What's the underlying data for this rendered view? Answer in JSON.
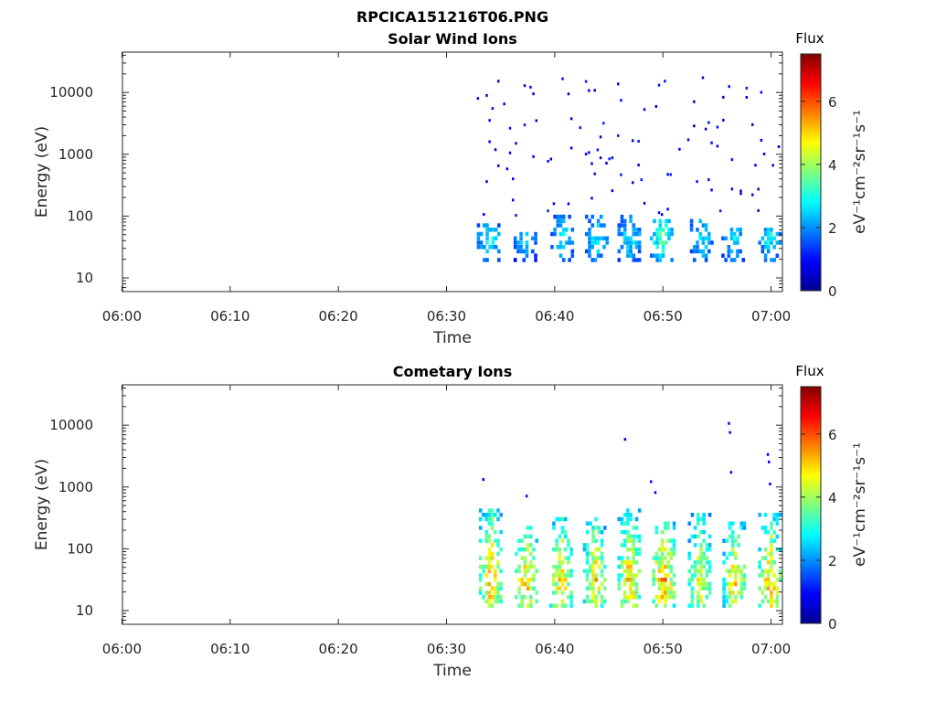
{
  "figure": {
    "title": "RPCICA151216T06.PNG"
  },
  "chart_data": [
    {
      "type": "heatmap",
      "title": "Solar Wind Ions",
      "xlabel": "Time",
      "ylabel": "Energy (eV)",
      "x_ticks": [
        "06:00",
        "06:10",
        "06:20",
        "06:30",
        "06:40",
        "06:50",
        "07:00"
      ],
      "x_range_minutes": [
        0,
        61
      ],
      "y_scale": "log",
      "y_ticks": [
        10,
        100,
        1000,
        10000
      ],
      "y_tick_labels": [
        "10",
        "100",
        "1000",
        "10000"
      ],
      "y_range": [
        6,
        45000
      ],
      "colorbar": {
        "label": "Flux",
        "units": "eV⁻¹cm⁻²sr⁻¹s⁻¹",
        "range": [
          0,
          7.5
        ],
        "ticks": [
          0,
          2,
          4,
          6
        ],
        "tick_labels": [
          "0",
          "2",
          "4",
          "6"
        ],
        "colormap": "jet"
      },
      "data_start_minute": 32.5,
      "bursts": [
        {
          "t": 33.8,
          "lo": 18,
          "hi": 80,
          "peak": 3.6
        },
        {
          "t": 37.2,
          "lo": 18,
          "hi": 55,
          "peak": 3.4
        },
        {
          "t": 40.6,
          "lo": 18,
          "hi": 100,
          "peak": 3.2
        },
        {
          "t": 43.8,
          "lo": 18,
          "hi": 110,
          "peak": 3.4
        },
        {
          "t": 46.8,
          "lo": 18,
          "hi": 110,
          "peak": 3.4
        },
        {
          "t": 49.8,
          "lo": 18,
          "hi": 90,
          "peak": 4.2
        },
        {
          "t": 53.5,
          "lo": 18,
          "hi": 90,
          "peak": 3.4
        },
        {
          "t": 56.4,
          "lo": 18,
          "hi": 70,
          "peak": 3.4
        },
        {
          "t": 59.8,
          "lo": 18,
          "hi": 70,
          "peak": 3.6
        }
      ],
      "scatter_energy_range": [
        100,
        20000
      ],
      "scatter_level": 0.6
    },
    {
      "type": "heatmap",
      "title": "Cometary Ions",
      "xlabel": "Time",
      "ylabel": "Energy (eV)",
      "x_ticks": [
        "06:00",
        "06:10",
        "06:20",
        "06:30",
        "06:40",
        "06:50",
        "07:00"
      ],
      "x_range_minutes": [
        0,
        61
      ],
      "y_scale": "log",
      "y_ticks": [
        10,
        100,
        1000,
        10000
      ],
      "y_tick_labels": [
        "10",
        "100",
        "1000",
        "10000"
      ],
      "y_range": [
        6,
        45000
      ],
      "colorbar": {
        "label": "Flux",
        "units": "eV⁻¹cm⁻²sr⁻¹s⁻¹",
        "range": [
          0,
          7.5
        ],
        "ticks": [
          0,
          2,
          4,
          6
        ],
        "tick_labels": [
          "0",
          "2",
          "4",
          "6"
        ],
        "colormap": "jet"
      },
      "data_start_minute": 32.5,
      "bursts": [
        {
          "t": 34.0,
          "lo": 12,
          "hi": 500,
          "peak": 6.4
        },
        {
          "t": 37.3,
          "lo": 12,
          "hi": 250,
          "peak": 6.2
        },
        {
          "t": 40.5,
          "lo": 12,
          "hi": 350,
          "peak": 6.0
        },
        {
          "t": 43.6,
          "lo": 12,
          "hi": 350,
          "peak": 6.0
        },
        {
          "t": 46.8,
          "lo": 12,
          "hi": 450,
          "peak": 6.2
        },
        {
          "t": 50.0,
          "lo": 12,
          "hi": 300,
          "peak": 6.6
        },
        {
          "t": 53.3,
          "lo": 12,
          "hi": 450,
          "peak": 5.6
        },
        {
          "t": 56.5,
          "lo": 12,
          "hi": 300,
          "peak": 6.0
        },
        {
          "t": 59.8,
          "lo": 12,
          "hi": 400,
          "peak": 6.2
        }
      ],
      "outliers": [
        {
          "t": 33.3,
          "e": 1300
        },
        {
          "t": 37.3,
          "e": 700
        },
        {
          "t": 46.4,
          "e": 5800
        },
        {
          "t": 48.8,
          "e": 1200
        },
        {
          "t": 49.2,
          "e": 800
        },
        {
          "t": 56.0,
          "e": 10500
        },
        {
          "t": 56.1,
          "e": 7500
        },
        {
          "t": 56.2,
          "e": 1700
        },
        {
          "t": 59.6,
          "e": 3300
        },
        {
          "t": 59.7,
          "e": 2500
        },
        {
          "t": 59.8,
          "e": 1100
        }
      ]
    }
  ]
}
